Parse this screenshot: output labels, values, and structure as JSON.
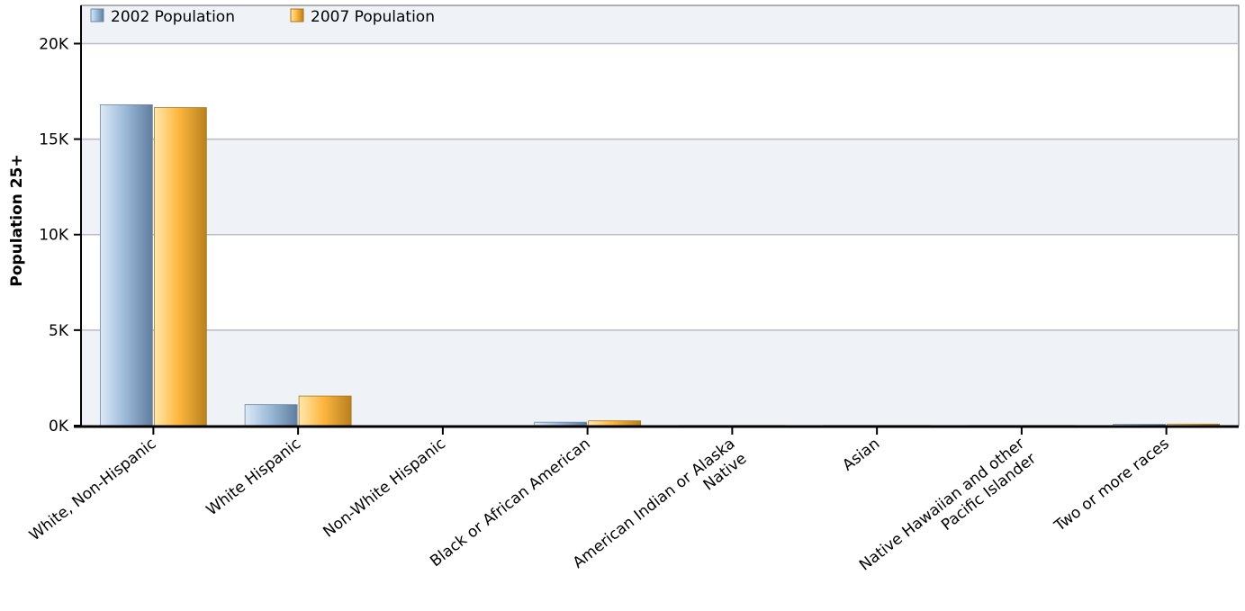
{
  "chart_data": {
    "type": "bar",
    "title": "",
    "xlabel": "",
    "ylabel": "Population 25+",
    "ylim": [
      0,
      22000
    ],
    "y_ticks": [
      0,
      5000,
      10000,
      15000,
      20000
    ],
    "y_tick_labels": [
      "0K",
      "5K",
      "10K",
      "15K",
      "20K"
    ],
    "grid": true,
    "legend_position": "top-left",
    "categories": [
      "White, Non-Hispanic",
      "White Hispanic",
      "Non-White Hispanic",
      "Black or African American",
      "American Indian or Alaska Native",
      "Asian",
      "Native Hawaiian and other Pacific Islander",
      "Two or more races"
    ],
    "series": [
      {
        "name": "2002 Population",
        "color": "#9ab8d8",
        "values": [
          16800,
          1100,
          0,
          180,
          10,
          10,
          10,
          70
        ]
      },
      {
        "name": "2007 Population",
        "color": "#ffbb44",
        "values": [
          16650,
          1550,
          0,
          250,
          10,
          10,
          10,
          80
        ]
      }
    ]
  }
}
